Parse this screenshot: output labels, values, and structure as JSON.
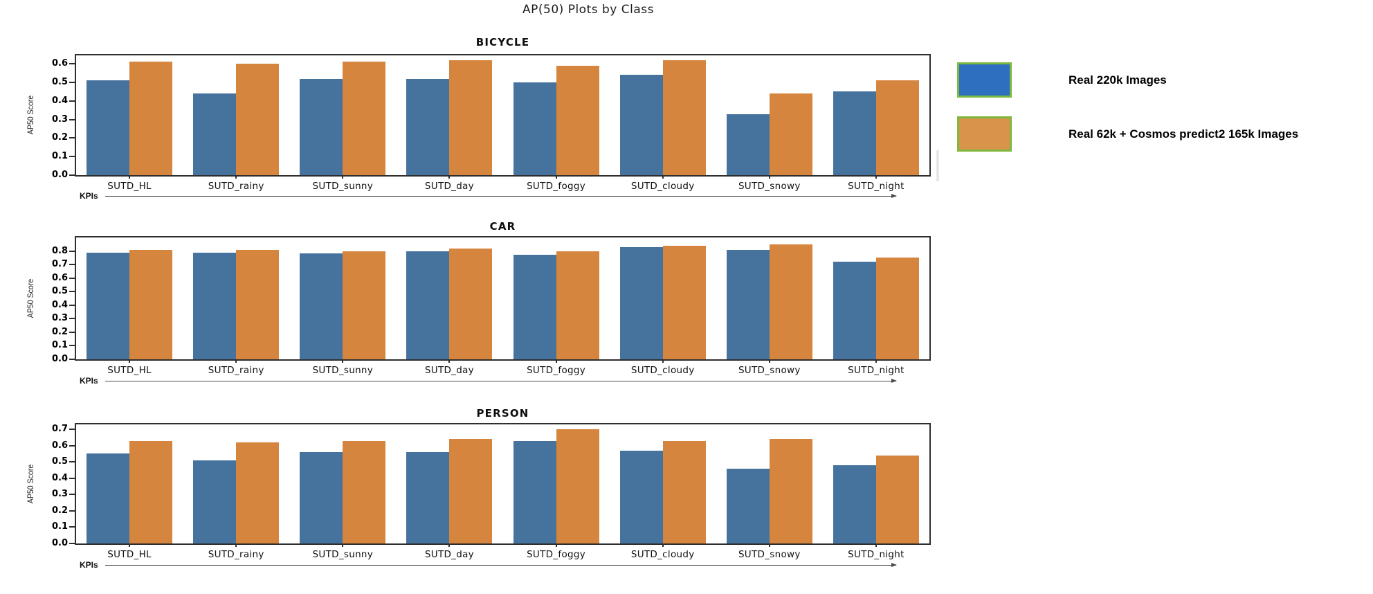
{
  "page_title": "AP(50) Plots by Class",
  "colors": {
    "bar_blue": "#46739E",
    "bar_orange": "#D6853F",
    "legend_blue": "#2F6FC0",
    "legend_orange": "#D9944C",
    "legend_border_green": "#7CB93F",
    "axis_frame": "#2e2e2e"
  },
  "legend": {
    "position": "outside-right",
    "items": [
      {
        "label": "Real 220k Images",
        "color": "#2F6FC0",
        "border": "#7CB93F"
      },
      {
        "label": "Real 62k + Cosmos predict2 165k Images",
        "color": "#D9944C",
        "border": "#7CB93F"
      }
    ]
  },
  "chart_data": [
    {
      "type": "bar",
      "title": "BICYCLE",
      "xlabel": "KPIs",
      "ylabel": "AP50 Score",
      "categories": [
        "SUTD_HL",
        "SUTD_rainy",
        "SUTD_sunny",
        "SUTD_day",
        "SUTD_foggy",
        "SUTD_cloudy",
        "SUTD_snowy",
        "SUTD_night"
      ],
      "series": [
        {
          "name": "Real 220k Images",
          "color": "#46739E",
          "values": [
            0.51,
            0.44,
            0.52,
            0.52,
            0.5,
            0.54,
            0.33,
            0.45
          ]
        },
        {
          "name": "Real 62k + Cosmos predict2 165k Images",
          "color": "#D6853F",
          "values": [
            0.61,
            0.6,
            0.61,
            0.62,
            0.59,
            0.62,
            0.44,
            0.51
          ]
        }
      ],
      "ylim": [
        0,
        0.645
      ],
      "yticks": [
        0.0,
        0.1,
        0.2,
        0.3,
        0.4,
        0.5,
        0.6
      ],
      "grid": false,
      "legend_position": "outside-right"
    },
    {
      "type": "bar",
      "title": "CAR",
      "xlabel": "KPIs",
      "ylabel": "AP50 Score",
      "categories": [
        "SUTD_HL",
        "SUTD_rainy",
        "SUTD_sunny",
        "SUTD_day",
        "SUTD_foggy",
        "SUTD_cloudy",
        "SUTD_snowy",
        "SUTD_night"
      ],
      "series": [
        {
          "name": "Real 220k Images",
          "color": "#46739E",
          "values": [
            0.79,
            0.79,
            0.78,
            0.8,
            0.77,
            0.83,
            0.81,
            0.72
          ]
        },
        {
          "name": "Real 62k + Cosmos predict2 165k Images",
          "color": "#D6853F",
          "values": [
            0.81,
            0.81,
            0.8,
            0.82,
            0.8,
            0.84,
            0.85,
            0.75
          ]
        }
      ],
      "ylim": [
        0,
        0.9
      ],
      "yticks": [
        0.0,
        0.1,
        0.2,
        0.3,
        0.4,
        0.5,
        0.6,
        0.7,
        0.8
      ],
      "grid": false,
      "legend_position": "outside-right"
    },
    {
      "type": "bar",
      "title": "PERSON",
      "xlabel": "KPIs",
      "ylabel": "AP50 Score",
      "categories": [
        "SUTD_HL",
        "SUTD_rainy",
        "SUTD_sunny",
        "SUTD_day",
        "SUTD_foggy",
        "SUTD_cloudy",
        "SUTD_snowy",
        "SUTD_night"
      ],
      "series": [
        {
          "name": "Real 220k Images",
          "color": "#46739E",
          "values": [
            0.55,
            0.51,
            0.56,
            0.56,
            0.63,
            0.57,
            0.46,
            0.48
          ]
        },
        {
          "name": "Real 62k + Cosmos predict2 165k Images",
          "color": "#D6853F",
          "values": [
            0.63,
            0.62,
            0.63,
            0.64,
            0.7,
            0.63,
            0.64,
            0.54
          ]
        }
      ],
      "ylim": [
        0,
        0.73
      ],
      "yticks": [
        0.0,
        0.1,
        0.2,
        0.3,
        0.4,
        0.5,
        0.6,
        0.7
      ],
      "grid": false,
      "legend_position": "outside-right"
    }
  ]
}
